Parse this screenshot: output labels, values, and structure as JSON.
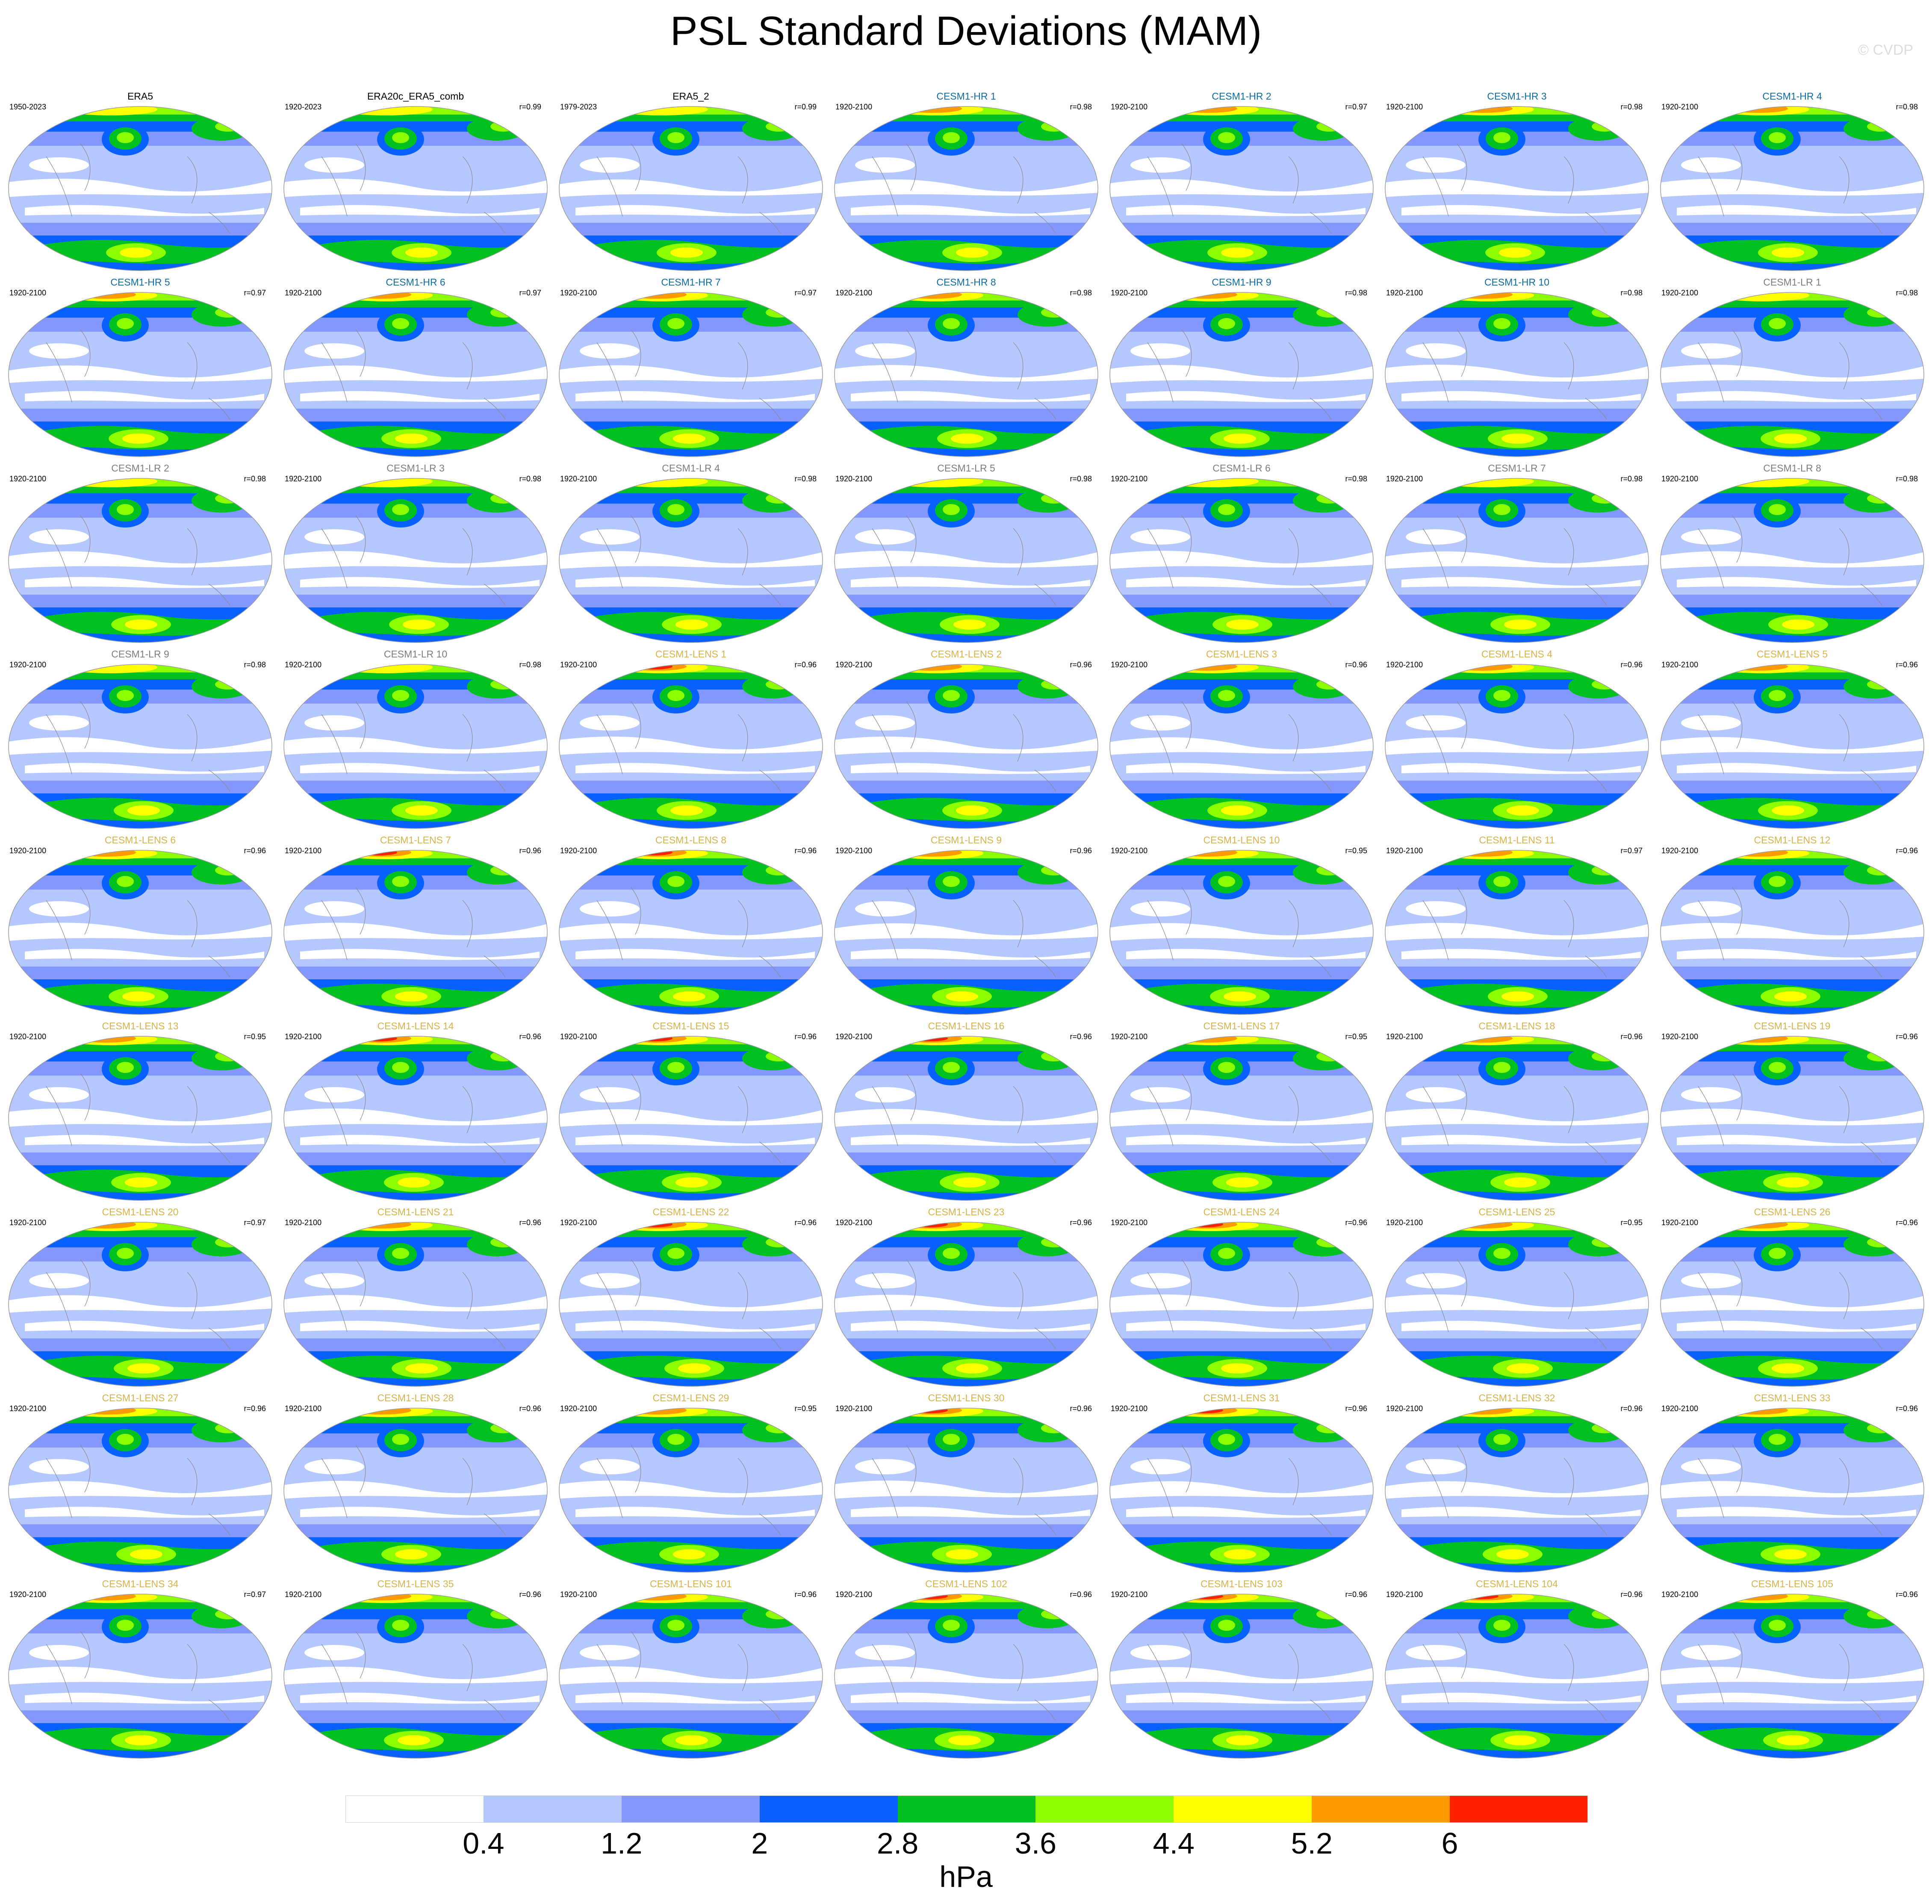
{
  "title": "PSL Standard Deviations (MAM)",
  "watermark": "© CVDP",
  "units": "hPa",
  "colorbar": {
    "colors": [
      "#ffffff",
      "#b4c8ff",
      "#8497ff",
      "#0760ff",
      "#00c120",
      "#8efc00",
      "#ffff00",
      "#ff9a00",
      "#ff2000"
    ],
    "labels": [
      "0.4",
      "1.2",
      "2",
      "2.8",
      "3.6",
      "4.4",
      "5.2",
      "6"
    ]
  },
  "name_colors": {
    "obs": "#000000",
    "hr": "#0e6ca4",
    "lr": "#7d7d7d",
    "lens": "#d9b34a"
  },
  "panels": [
    {
      "name": "ERA5",
      "period": "1950-2023",
      "r": "",
      "group": "obs"
    },
    {
      "name": "ERA20c_ERA5_comb",
      "period": "1920-2023",
      "r": "r=0.99",
      "group": "obs"
    },
    {
      "name": "ERA5_2",
      "period": "1979-2023",
      "r": "r=0.99",
      "group": "obs"
    },
    {
      "name": "CESM1-HR 1",
      "period": "1920-2100",
      "r": "r=0.98",
      "group": "hr"
    },
    {
      "name": "CESM1-HR 2",
      "period": "1920-2100",
      "r": "r=0.97",
      "group": "hr"
    },
    {
      "name": "CESM1-HR 3",
      "period": "1920-2100",
      "r": "r=0.98",
      "group": "hr"
    },
    {
      "name": "CESM1-HR 4",
      "period": "1920-2100",
      "r": "r=0.98",
      "group": "hr"
    },
    {
      "name": "CESM1-HR 5",
      "period": "1920-2100",
      "r": "r=0.97",
      "group": "hr"
    },
    {
      "name": "CESM1-HR 6",
      "period": "1920-2100",
      "r": "r=0.97",
      "group": "hr"
    },
    {
      "name": "CESM1-HR 7",
      "period": "1920-2100",
      "r": "r=0.97",
      "group": "hr"
    },
    {
      "name": "CESM1-HR 8",
      "period": "1920-2100",
      "r": "r=0.98",
      "group": "hr"
    },
    {
      "name": "CESM1-HR 9",
      "period": "1920-2100",
      "r": "r=0.98",
      "group": "hr"
    },
    {
      "name": "CESM1-HR 10",
      "period": "1920-2100",
      "r": "r=0.98",
      "group": "hr"
    },
    {
      "name": "CESM1-LR 1",
      "period": "1920-2100",
      "r": "r=0.98",
      "group": "lr"
    },
    {
      "name": "CESM1-LR 2",
      "period": "1920-2100",
      "r": "r=0.98",
      "group": "lr"
    },
    {
      "name": "CESM1-LR 3",
      "period": "1920-2100",
      "r": "r=0.98",
      "group": "lr"
    },
    {
      "name": "CESM1-LR 4",
      "period": "1920-2100",
      "r": "r=0.98",
      "group": "lr"
    },
    {
      "name": "CESM1-LR 5",
      "period": "1920-2100",
      "r": "r=0.98",
      "group": "lr"
    },
    {
      "name": "CESM1-LR 6",
      "period": "1920-2100",
      "r": "r=0.98",
      "group": "lr"
    },
    {
      "name": "CESM1-LR 7",
      "period": "1920-2100",
      "r": "r=0.98",
      "group": "lr"
    },
    {
      "name": "CESM1-LR 8",
      "period": "1920-2100",
      "r": "r=0.98",
      "group": "lr"
    },
    {
      "name": "CESM1-LR 9",
      "period": "1920-2100",
      "r": "r=0.98",
      "group": "lr"
    },
    {
      "name": "CESM1-LR 10",
      "period": "1920-2100",
      "r": "r=0.98",
      "group": "lr"
    },
    {
      "name": "CESM1-LENS 1",
      "period": "1920-2100",
      "r": "r=0.96",
      "group": "lens"
    },
    {
      "name": "CESM1-LENS 2",
      "period": "1920-2100",
      "r": "r=0.96",
      "group": "lens"
    },
    {
      "name": "CESM1-LENS 3",
      "period": "1920-2100",
      "r": "r=0.96",
      "group": "lens"
    },
    {
      "name": "CESM1-LENS 4",
      "period": "1920-2100",
      "r": "r=0.96",
      "group": "lens"
    },
    {
      "name": "CESM1-LENS 5",
      "period": "1920-2100",
      "r": "r=0.96",
      "group": "lens"
    },
    {
      "name": "CESM1-LENS 6",
      "period": "1920-2100",
      "r": "r=0.96",
      "group": "lens"
    },
    {
      "name": "CESM1-LENS 7",
      "period": "1920-2100",
      "r": "r=0.96",
      "group": "lens"
    },
    {
      "name": "CESM1-LENS 8",
      "period": "1920-2100",
      "r": "r=0.96",
      "group": "lens"
    },
    {
      "name": "CESM1-LENS 9",
      "period": "1920-2100",
      "r": "r=0.96",
      "group": "lens"
    },
    {
      "name": "CESM1-LENS 10",
      "period": "1920-2100",
      "r": "r=0.95",
      "group": "lens"
    },
    {
      "name": "CESM1-LENS 11",
      "period": "1920-2100",
      "r": "r=0.97",
      "group": "lens"
    },
    {
      "name": "CESM1-LENS 12",
      "period": "1920-2100",
      "r": "r=0.96",
      "group": "lens"
    },
    {
      "name": "CESM1-LENS 13",
      "period": "1920-2100",
      "r": "r=0.95",
      "group": "lens"
    },
    {
      "name": "CESM1-LENS 14",
      "period": "1920-2100",
      "r": "r=0.96",
      "group": "lens"
    },
    {
      "name": "CESM1-LENS 15",
      "period": "1920-2100",
      "r": "r=0.96",
      "group": "lens"
    },
    {
      "name": "CESM1-LENS 16",
      "period": "1920-2100",
      "r": "r=0.96",
      "group": "lens"
    },
    {
      "name": "CESM1-LENS 17",
      "period": "1920-2100",
      "r": "r=0.95",
      "group": "lens"
    },
    {
      "name": "CESM1-LENS 18",
      "period": "1920-2100",
      "r": "r=0.96",
      "group": "lens"
    },
    {
      "name": "CESM1-LENS 19",
      "period": "1920-2100",
      "r": "r=0.96",
      "group": "lens"
    },
    {
      "name": "CESM1-LENS 20",
      "period": "1920-2100",
      "r": "r=0.97",
      "group": "lens"
    },
    {
      "name": "CESM1-LENS 21",
      "period": "1920-2100",
      "r": "r=0.96",
      "group": "lens"
    },
    {
      "name": "CESM1-LENS 22",
      "period": "1920-2100",
      "r": "r=0.96",
      "group": "lens"
    },
    {
      "name": "CESM1-LENS 23",
      "period": "1920-2100",
      "r": "r=0.96",
      "group": "lens"
    },
    {
      "name": "CESM1-LENS 24",
      "period": "1920-2100",
      "r": "r=0.96",
      "group": "lens"
    },
    {
      "name": "CESM1-LENS 25",
      "period": "1920-2100",
      "r": "r=0.95",
      "group": "lens"
    },
    {
      "name": "CESM1-LENS 26",
      "period": "1920-2100",
      "r": "r=0.96",
      "group": "lens"
    },
    {
      "name": "CESM1-LENS 27",
      "period": "1920-2100",
      "r": "r=0.96",
      "group": "lens"
    },
    {
      "name": "CESM1-LENS 28",
      "period": "1920-2100",
      "r": "r=0.96",
      "group": "lens"
    },
    {
      "name": "CESM1-LENS 29",
      "period": "1920-2100",
      "r": "r=0.95",
      "group": "lens"
    },
    {
      "name": "CESM1-LENS 30",
      "period": "1920-2100",
      "r": "r=0.96",
      "group": "lens"
    },
    {
      "name": "CESM1-LENS 31",
      "period": "1920-2100",
      "r": "r=0.96",
      "group": "lens"
    },
    {
      "name": "CESM1-LENS 32",
      "period": "1920-2100",
      "r": "r=0.96",
      "group": "lens"
    },
    {
      "name": "CESM1-LENS 33",
      "period": "1920-2100",
      "r": "r=0.96",
      "group": "lens"
    },
    {
      "name": "CESM1-LENS 34",
      "period": "1920-2100",
      "r": "r=0.97",
      "group": "lens"
    },
    {
      "name": "CESM1-LENS 35",
      "period": "1920-2100",
      "r": "r=0.96",
      "group": "lens"
    },
    {
      "name": "CESM1-LENS 101",
      "period": "1920-2100",
      "r": "r=0.96",
      "group": "lens"
    },
    {
      "name": "CESM1-LENS 102",
      "period": "1920-2100",
      "r": "r=0.96",
      "group": "lens"
    },
    {
      "name": "CESM1-LENS 103",
      "period": "1920-2100",
      "r": "r=0.96",
      "group": "lens"
    },
    {
      "name": "CESM1-LENS 104",
      "period": "1920-2100",
      "r": "r=0.96",
      "group": "lens"
    },
    {
      "name": "CESM1-LENS 105",
      "period": "1920-2100",
      "r": "r=0.96",
      "group": "lens"
    }
  ]
}
